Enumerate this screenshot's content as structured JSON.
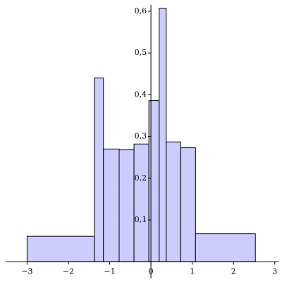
{
  "chart_data": {
    "type": "histogram",
    "bins": [
      -3.0,
      -1.37,
      -1.15,
      -0.77,
      -0.41,
      -0.05,
      0.2,
      0.37,
      0.72,
      1.08,
      2.53
    ],
    "values": [
      0.061,
      0.44,
      0.27,
      0.268,
      0.282,
      0.386,
      0.607,
      0.287,
      0.273,
      0.067
    ],
    "color": "#ccccff",
    "xlim": [
      -3.52,
      3.09
    ],
    "ylim": [
      -0.04,
      0.615
    ],
    "xticks": [
      {
        "value": -3,
        "label": "−3"
      },
      {
        "value": -2,
        "label": "−2"
      },
      {
        "value": -1,
        "label": "−1"
      },
      0,
      1,
      2,
      3
    ],
    "yticks": [
      {
        "value": 0.1,
        "label": "0,1"
      },
      {
        "value": 0.2,
        "label": "0,2"
      },
      {
        "value": 0.3,
        "label": "0,3"
      },
      {
        "value": 0.4,
        "label": "0,4"
      },
      {
        "value": 0.5,
        "label": "0,5"
      },
      {
        "value": 0.6,
        "label": "0,6"
      }
    ]
  }
}
